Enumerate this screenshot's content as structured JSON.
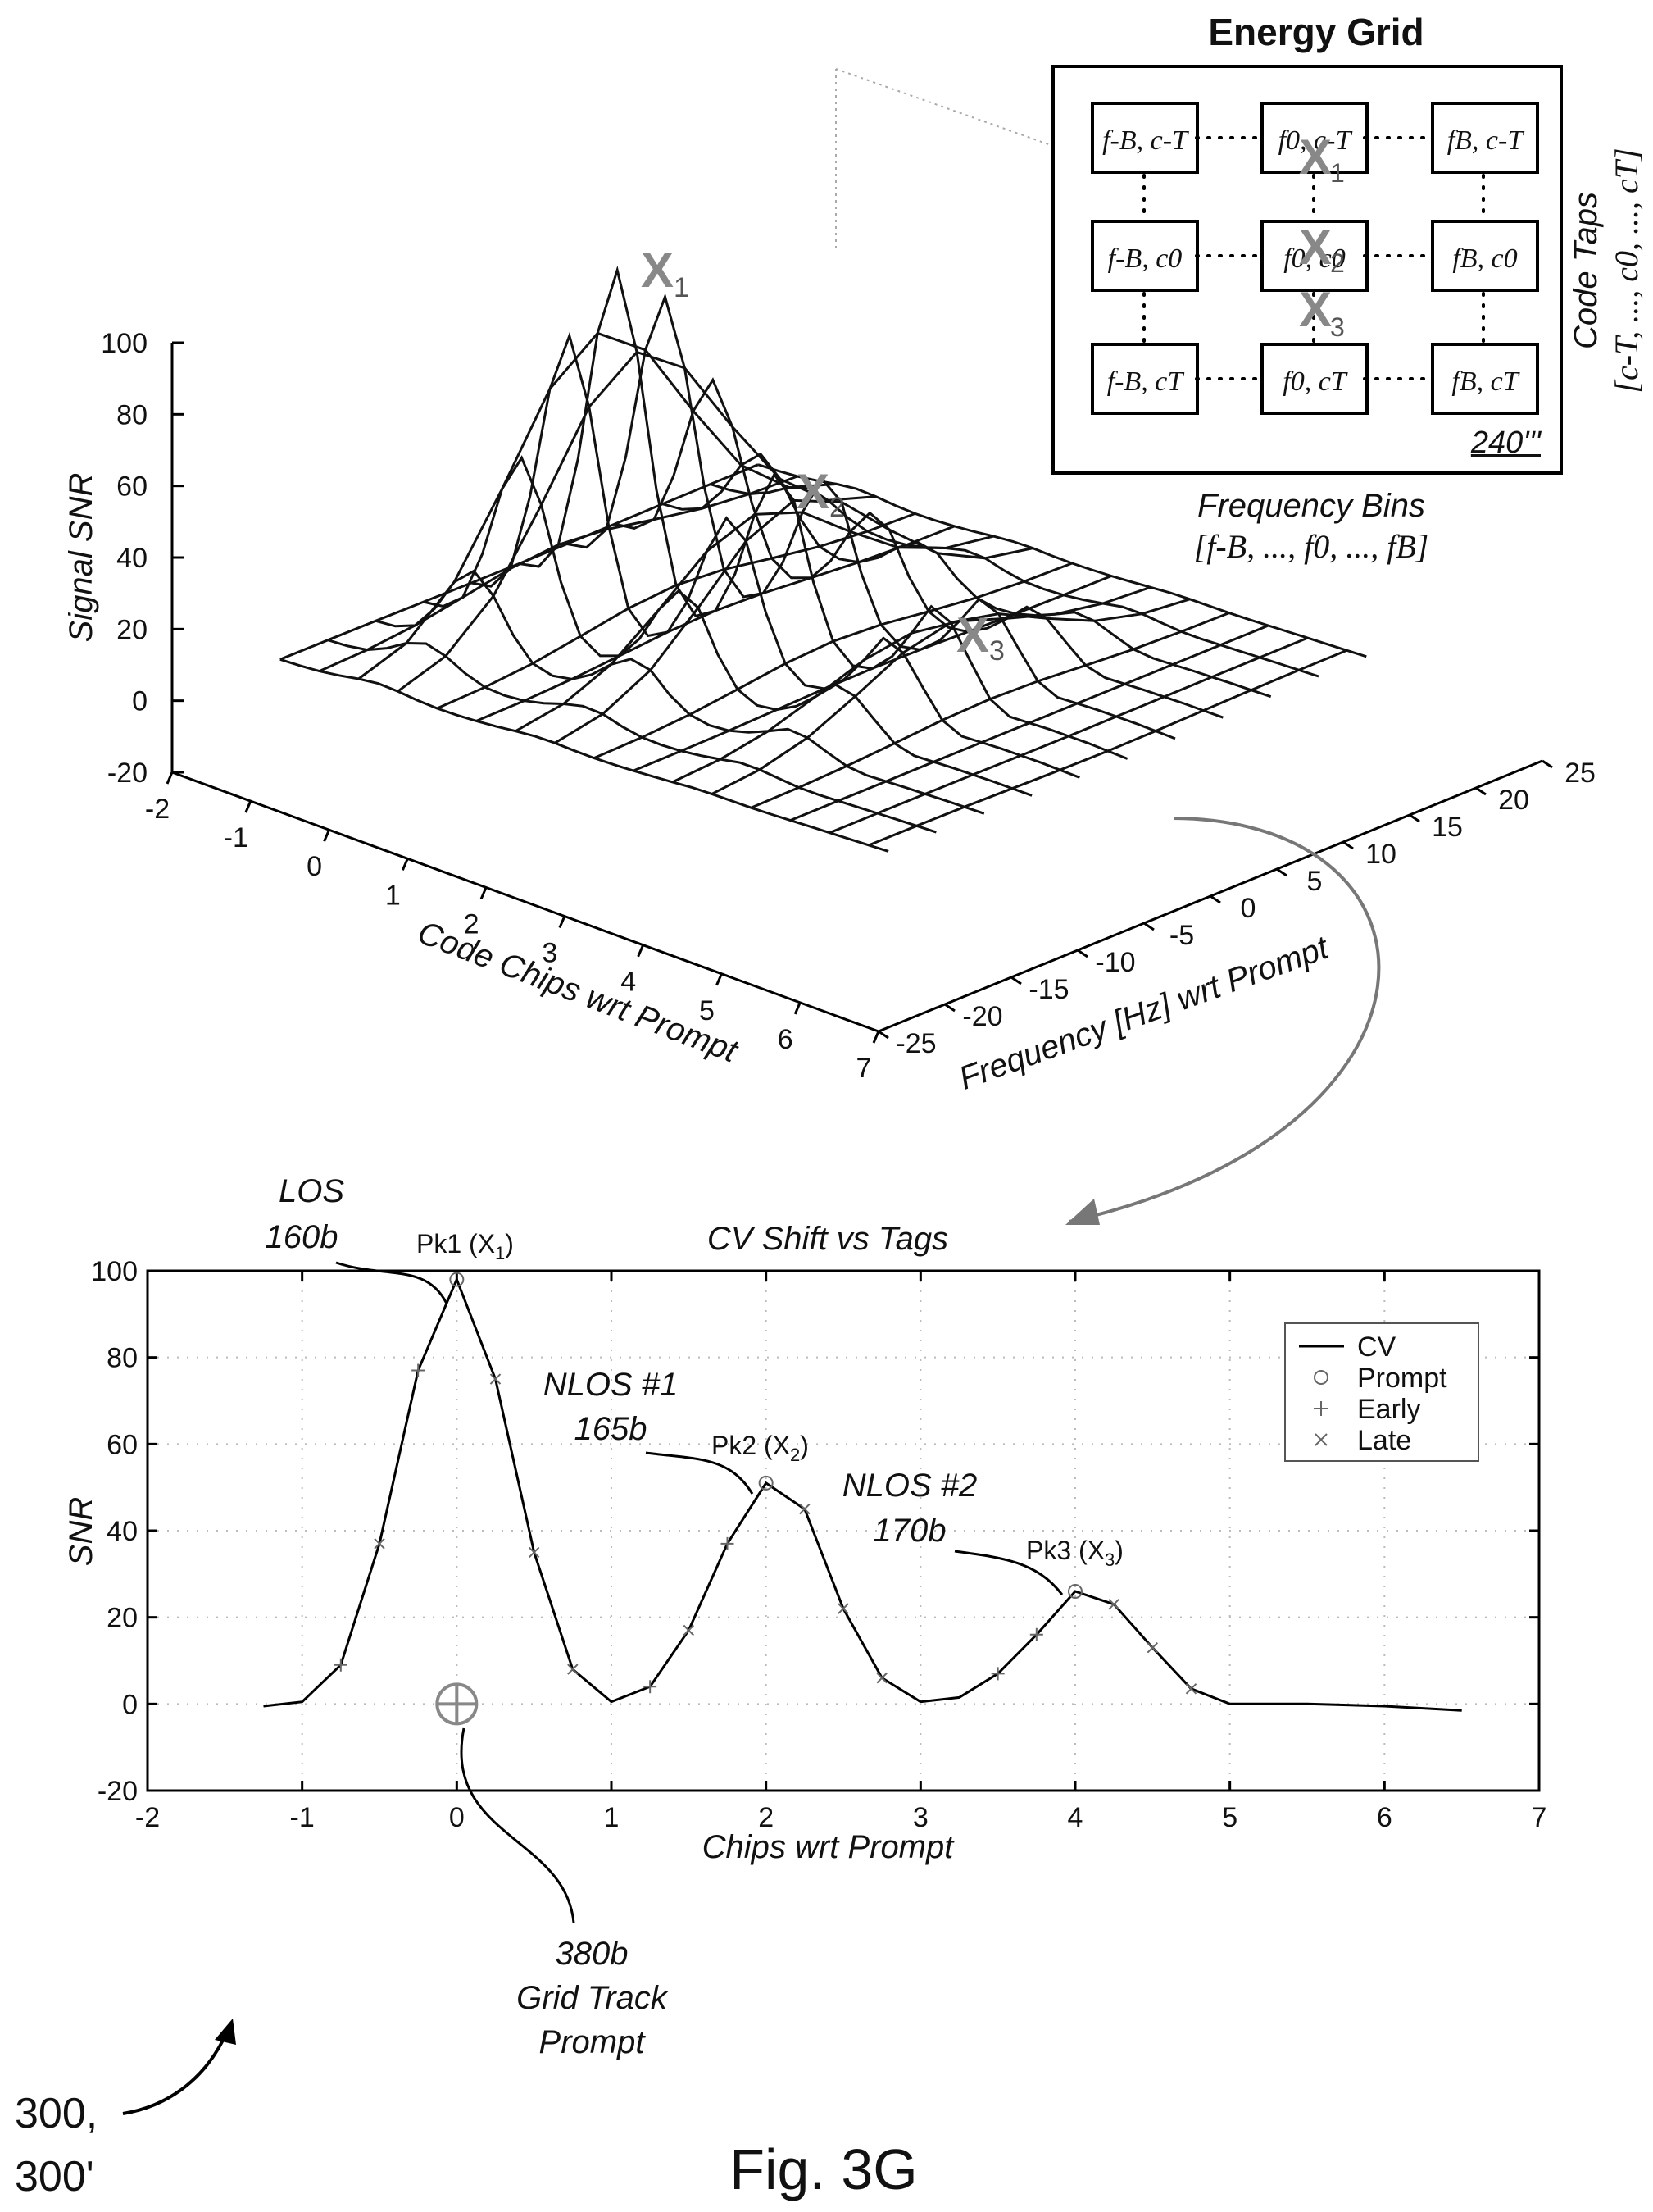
{
  "surface": {
    "zlabel": "Signal SNR",
    "xlabel": "Code Chips wrt Prompt",
    "ylabel": "Frequency [Hz] wrt Prompt",
    "zticks": [
      "100",
      "80",
      "60",
      "40",
      "20",
      "0",
      "-20"
    ],
    "xticks": [
      "-2",
      "-1",
      "0",
      "1",
      "2",
      "3",
      "4",
      "5",
      "6",
      "7"
    ],
    "yticks": [
      "-25",
      "-20",
      "-15",
      "-10",
      "-5",
      "0",
      "5",
      "10",
      "15",
      "20",
      "25"
    ],
    "zlim": [
      -20,
      100
    ],
    "xlim": [
      -2,
      7
    ],
    "ylim": [
      -25,
      25
    ],
    "peaks": [
      {
        "label": "X",
        "sub": "1"
      },
      {
        "label": "X",
        "sub": "2"
      },
      {
        "label": "X",
        "sub": "3"
      }
    ]
  },
  "energy_grid": {
    "title": "Energy Grid",
    "cells": [
      [
        "f-B, c-T",
        "f0, c-T",
        "fB, c-T"
      ],
      [
        "f-B, c0",
        "f0, c0",
        "fB, c0"
      ],
      [
        "f-B, cT",
        "f0, cT",
        "fB, cT"
      ]
    ],
    "ref": "240'''",
    "side_label": "Code Taps",
    "side_range": "[c-T, ..., c0, ..., cT]",
    "bottom_label": "Frequency Bins",
    "bottom_range": "[f-B, ..., f0, ..., fB]"
  },
  "chart_data": {
    "type": "line",
    "title": "CV Shift vs Tags",
    "xlabel": "Chips wrt Prompt",
    "ylabel": "SNR",
    "xlim": [
      -2,
      7
    ],
    "ylim": [
      -20,
      100
    ],
    "xticks": [
      "-2",
      "-1",
      "0",
      "1",
      "2",
      "3",
      "4",
      "5",
      "6",
      "7"
    ],
    "yticks": [
      "100",
      "80",
      "60",
      "40",
      "20",
      "0",
      "-20"
    ],
    "grid": true,
    "legend_position": "top-right",
    "series": [
      {
        "name": "CV",
        "marker": "line",
        "x": [
          -1.25,
          -1.0,
          -0.75,
          -0.5,
          -0.25,
          0.0,
          0.25,
          0.5,
          0.75,
          1.0,
          1.25,
          1.5,
          1.75,
          2.0,
          2.25,
          2.5,
          2.75,
          3.0,
          3.25,
          3.5,
          3.75,
          4.0,
          4.25,
          4.5,
          4.75,
          5.0,
          5.5,
          6.0,
          6.5
        ],
        "y": [
          -0.5,
          0.5,
          9,
          37,
          77,
          98,
          75,
          35,
          8,
          0.5,
          4,
          17,
          37,
          51,
          45,
          22,
          6,
          0.5,
          1.5,
          7,
          16,
          26,
          23,
          13,
          3.5,
          0,
          0,
          -0.5,
          -1.5
        ]
      },
      {
        "name": "Prompt",
        "marker": "circle",
        "x": [
          0.0,
          2.0,
          4.0
        ],
        "y": [
          98,
          51,
          26
        ]
      },
      {
        "name": "Early",
        "marker": "plus",
        "x": [
          -0.75,
          -0.25,
          1.25,
          1.75,
          3.5,
          3.75
        ],
        "y": [
          9,
          77,
          4,
          37,
          7,
          16
        ]
      },
      {
        "name": "Late",
        "marker": "cross",
        "x": [
          -0.5,
          0.25,
          0.5,
          0.75,
          1.5,
          2.25,
          2.5,
          2.75,
          4.25,
          4.5,
          4.75
        ],
        "y": [
          37,
          75,
          35,
          8,
          17,
          45,
          22,
          6,
          23,
          13,
          3.5
        ]
      }
    ],
    "peak_labels": [
      {
        "text": "Pk1 (X",
        "sub": "1",
        "tail": ")",
        "x": 0,
        "y": 98
      },
      {
        "text": "Pk2 (X",
        "sub": "2",
        "tail": ")",
        "x": 2,
        "y": 51
      },
      {
        "text": "Pk3 (X",
        "sub": "3",
        "tail": ")",
        "x": 4,
        "y": 26
      }
    ],
    "grid_track_prompt": {
      "x": 0,
      "y": 0
    }
  },
  "callouts": {
    "los": [
      "LOS",
      "160b"
    ],
    "nlos1": [
      "NLOS #1",
      "165b"
    ],
    "nlos2": [
      "NLOS #2",
      "170b"
    ],
    "grid_track": [
      "380b",
      "Grid Track",
      "Prompt"
    ]
  },
  "figure_ref": [
    "300,",
    "300'"
  ],
  "fig_label": "Fig. 3G"
}
